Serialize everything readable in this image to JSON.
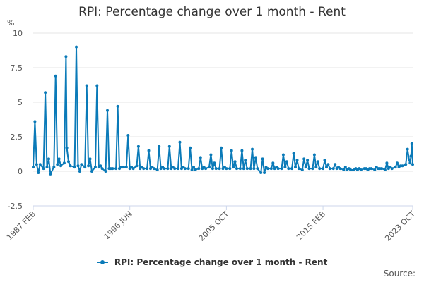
{
  "colors": {
    "series": "#0a7ab8",
    "grid": "#e6e6e6",
    "axis": "#ccd6eb",
    "text": "#555555"
  },
  "source_label": "Source:",
  "chart_data": {
    "type": "line",
    "title": "RPI: Percentage change over 1 month - Rent",
    "ylabel": "%",
    "xlabel": "",
    "ylim": [
      -2.5,
      10
    ],
    "yticks": [
      "-2.5",
      "0",
      "2.5",
      "5",
      "7.5",
      "10"
    ],
    "xlim": [
      "1987-02",
      "2023-10"
    ],
    "xtick_labels": [
      {
        "label": "1987 FEB",
        "date": "1987-02"
      },
      {
        "label": "1996 JUN",
        "date": "1996-06"
      },
      {
        "label": "2005 OCT",
        "date": "2005-10"
      },
      {
        "label": "2015 FEB",
        "date": "2015-02"
      },
      {
        "label": "2023 OCT",
        "date": "2023-10"
      }
    ],
    "grid": true,
    "legend": "bottom",
    "series": [
      {
        "name": "RPI: Percentage change over 1 month - Rent",
        "points": [
          [
            "1987-02",
            0.3
          ],
          [
            "1987-04",
            3.6
          ],
          [
            "1987-06",
            0.5
          ],
          [
            "1987-08",
            -0.1
          ],
          [
            "1987-10",
            0.5
          ],
          [
            "1988-02",
            0.2
          ],
          [
            "1988-04",
            5.7
          ],
          [
            "1988-06",
            0.3
          ],
          [
            "1988-08",
            0.9
          ],
          [
            "1988-10",
            -0.2
          ],
          [
            "1989-02",
            0.3
          ],
          [
            "1989-04",
            6.9
          ],
          [
            "1989-06",
            0.5
          ],
          [
            "1989-08",
            0.9
          ],
          [
            "1989-10",
            0.4
          ],
          [
            "1990-02",
            0.6
          ],
          [
            "1990-04",
            8.3
          ],
          [
            "1990-05",
            1.7
          ],
          [
            "1990-07",
            0.7
          ],
          [
            "1990-09",
            0.4
          ],
          [
            "1991-02",
            0.3
          ],
          [
            "1991-04",
            9.0
          ],
          [
            "1991-06",
            0.4
          ],
          [
            "1991-08",
            0.0
          ],
          [
            "1991-10",
            0.5
          ],
          [
            "1992-02",
            0.3
          ],
          [
            "1992-04",
            6.2
          ],
          [
            "1992-06",
            0.4
          ],
          [
            "1992-08",
            0.9
          ],
          [
            "1992-10",
            0.0
          ],
          [
            "1993-02",
            0.3
          ],
          [
            "1993-04",
            6.2
          ],
          [
            "1993-06",
            0.3
          ],
          [
            "1993-08",
            0.4
          ],
          [
            "1993-10",
            0.2
          ],
          [
            "1994-02",
            0.0
          ],
          [
            "1994-04",
            4.4
          ],
          [
            "1994-06",
            0.2
          ],
          [
            "1994-08",
            0.2
          ],
          [
            "1994-10",
            0.2
          ],
          [
            "1995-02",
            0.2
          ],
          [
            "1995-04",
            4.7
          ],
          [
            "1995-06",
            0.2
          ],
          [
            "1995-08",
            0.3
          ],
          [
            "1995-10",
            0.3
          ],
          [
            "1996-02",
            0.3
          ],
          [
            "1996-04",
            2.6
          ],
          [
            "1996-06",
            0.2
          ],
          [
            "1996-08",
            0.3
          ],
          [
            "1996-10",
            0.2
          ],
          [
            "1997-02",
            0.4
          ],
          [
            "1997-04",
            1.8
          ],
          [
            "1997-06",
            0.2
          ],
          [
            "1997-08",
            0.3
          ],
          [
            "1997-10",
            0.2
          ],
          [
            "1998-02",
            0.2
          ],
          [
            "1998-04",
            1.5
          ],
          [
            "1998-06",
            0.2
          ],
          [
            "1998-08",
            0.3
          ],
          [
            "1998-10",
            0.2
          ],
          [
            "1999-02",
            0.1
          ],
          [
            "1999-04",
            1.8
          ],
          [
            "1999-06",
            0.2
          ],
          [
            "1999-08",
            0.3
          ],
          [
            "1999-10",
            0.2
          ],
          [
            "2000-02",
            0.2
          ],
          [
            "2000-04",
            1.8
          ],
          [
            "2000-06",
            0.2
          ],
          [
            "2000-08",
            0.3
          ],
          [
            "2000-10",
            0.2
          ],
          [
            "2001-02",
            0.2
          ],
          [
            "2001-04",
            2.1
          ],
          [
            "2001-06",
            0.2
          ],
          [
            "2001-08",
            0.3
          ],
          [
            "2001-10",
            0.2
          ],
          [
            "2002-02",
            0.2
          ],
          [
            "2002-04",
            1.7
          ],
          [
            "2002-06",
            0.1
          ],
          [
            "2002-08",
            0.3
          ],
          [
            "2002-10",
            0.1
          ],
          [
            "2003-02",
            0.2
          ],
          [
            "2003-04",
            1.0
          ],
          [
            "2003-06",
            0.2
          ],
          [
            "2003-08",
            0.3
          ],
          [
            "2003-10",
            0.2
          ],
          [
            "2004-02",
            0.3
          ],
          [
            "2004-04",
            1.2
          ],
          [
            "2004-06",
            0.2
          ],
          [
            "2004-08",
            0.6
          ],
          [
            "2004-10",
            0.2
          ],
          [
            "2005-02",
            0.2
          ],
          [
            "2005-04",
            1.7
          ],
          [
            "2005-06",
            0.2
          ],
          [
            "2005-08",
            0.3
          ],
          [
            "2005-10",
            0.2
          ],
          [
            "2006-02",
            0.2
          ],
          [
            "2006-04",
            1.5
          ],
          [
            "2006-06",
            0.3
          ],
          [
            "2006-08",
            0.7
          ],
          [
            "2006-10",
            0.2
          ],
          [
            "2007-02",
            0.2
          ],
          [
            "2007-04",
            1.5
          ],
          [
            "2007-06",
            0.2
          ],
          [
            "2007-08",
            0.8
          ],
          [
            "2007-10",
            0.2
          ],
          [
            "2008-02",
            0.2
          ],
          [
            "2008-04",
            1.6
          ],
          [
            "2008-06",
            0.2
          ],
          [
            "2008-08",
            1.0
          ],
          [
            "2008-10",
            0.2
          ],
          [
            "2009-02",
            -0.1
          ],
          [
            "2009-04",
            0.9
          ],
          [
            "2009-06",
            -0.1
          ],
          [
            "2009-08",
            0.3
          ],
          [
            "2009-10",
            0.2
          ],
          [
            "2010-02",
            0.2
          ],
          [
            "2010-04",
            0.6
          ],
          [
            "2010-06",
            0.2
          ],
          [
            "2010-08",
            0.3
          ],
          [
            "2010-10",
            0.2
          ],
          [
            "2011-02",
            0.2
          ],
          [
            "2011-04",
            1.2
          ],
          [
            "2011-06",
            0.3
          ],
          [
            "2011-08",
            0.7
          ],
          [
            "2011-10",
            0.2
          ],
          [
            "2012-02",
            0.2
          ],
          [
            "2012-04",
            1.3
          ],
          [
            "2012-06",
            0.3
          ],
          [
            "2012-08",
            0.8
          ],
          [
            "2012-10",
            0.2
          ],
          [
            "2013-02",
            0.1
          ],
          [
            "2013-04",
            0.9
          ],
          [
            "2013-06",
            0.3
          ],
          [
            "2013-08",
            0.8
          ],
          [
            "2013-10",
            0.2
          ],
          [
            "2014-02",
            0.2
          ],
          [
            "2014-04",
            1.2
          ],
          [
            "2014-06",
            0.3
          ],
          [
            "2014-08",
            0.7
          ],
          [
            "2014-10",
            0.2
          ],
          [
            "2015-02",
            0.2
          ],
          [
            "2015-04",
            0.8
          ],
          [
            "2015-06",
            0.3
          ],
          [
            "2015-08",
            0.5
          ],
          [
            "2015-10",
            0.2
          ],
          [
            "2016-02",
            0.2
          ],
          [
            "2016-04",
            0.5
          ],
          [
            "2016-06",
            0.2
          ],
          [
            "2016-08",
            0.3
          ],
          [
            "2016-10",
            0.2
          ],
          [
            "2017-02",
            0.1
          ],
          [
            "2017-04",
            0.3
          ],
          [
            "2017-06",
            0.1
          ],
          [
            "2017-08",
            0.2
          ],
          [
            "2017-10",
            0.1
          ],
          [
            "2018-02",
            0.1
          ],
          [
            "2018-04",
            0.2
          ],
          [
            "2018-06",
            0.1
          ],
          [
            "2018-08",
            0.2
          ],
          [
            "2018-10",
            0.1
          ],
          [
            "2019-02",
            0.2
          ],
          [
            "2019-04",
            0.2
          ],
          [
            "2019-06",
            0.1
          ],
          [
            "2019-08",
            0.2
          ],
          [
            "2019-10",
            0.2
          ],
          [
            "2020-02",
            0.1
          ],
          [
            "2020-04",
            0.3
          ],
          [
            "2020-06",
            0.2
          ],
          [
            "2020-08",
            0.2
          ],
          [
            "2020-10",
            0.2
          ],
          [
            "2021-02",
            0.1
          ],
          [
            "2021-04",
            0.6
          ],
          [
            "2021-06",
            0.2
          ],
          [
            "2021-08",
            0.3
          ],
          [
            "2021-10",
            0.2
          ],
          [
            "2022-02",
            0.3
          ],
          [
            "2022-04",
            0.6
          ],
          [
            "2022-06",
            0.3
          ],
          [
            "2022-08",
            0.4
          ],
          [
            "2022-10",
            0.4
          ],
          [
            "2023-02",
            0.5
          ],
          [
            "2023-04",
            1.6
          ],
          [
            "2023-06",
            0.8
          ],
          [
            "2023-07",
            0.6
          ],
          [
            "2023-08",
            1.1
          ],
          [
            "2023-09",
            2.0
          ],
          [
            "2023-10",
            0.5
          ]
        ]
      }
    ]
  }
}
